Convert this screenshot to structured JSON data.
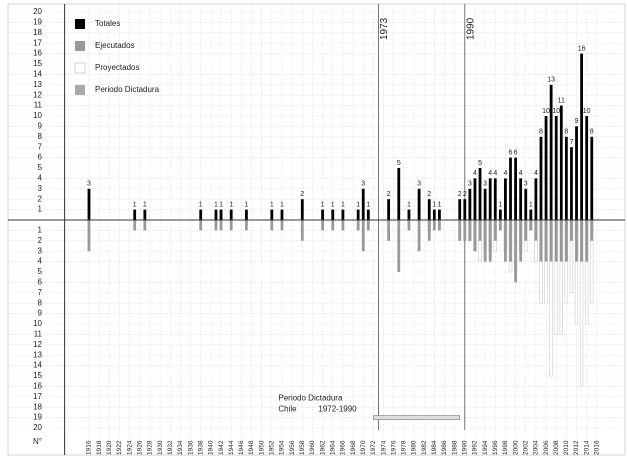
{
  "chart_data": {
    "type": "bar",
    "ylabel": "N°",
    "x": [
      1916,
      1925,
      1927,
      1938,
      1941,
      1942,
      1944,
      1947,
      1952,
      1954,
      1958,
      1962,
      1964,
      1966,
      1969,
      1970,
      1971,
      1975,
      1977,
      1979,
      1981,
      1983,
      1984,
      1985,
      1989,
      1990,
      1991,
      1992,
      1993,
      1994,
      1995,
      1996,
      1997,
      1998,
      1999,
      2000,
      2001,
      2002,
      2003,
      2004,
      2005,
      2006,
      2007,
      2008,
      2009,
      2010,
      2011,
      2012,
      2013,
      2014,
      2015
    ],
    "series": [
      {
        "name": "Totales",
        "color": "#000000",
        "values": [
          3,
          1,
          1,
          1,
          1,
          1,
          1,
          1,
          1,
          1,
          2,
          1,
          1,
          1,
          1,
          3,
          1,
          2,
          5,
          1,
          3,
          2,
          1,
          1,
          2,
          2,
          3,
          4,
          5,
          3,
          4,
          4,
          1,
          4,
          6,
          6,
          4,
          3,
          1,
          4,
          8,
          10,
          13,
          10,
          11,
          8,
          7,
          9,
          16,
          10,
          8
        ]
      },
      {
        "name": "Ejecutados",
        "color": "#999999",
        "values": [
          3,
          1,
          1,
          1,
          1,
          1,
          1,
          1,
          1,
          1,
          2,
          1,
          1,
          1,
          1,
          3,
          1,
          2,
          5,
          1,
          3,
          2,
          1,
          1,
          2,
          2,
          2,
          3,
          2,
          4,
          4,
          2,
          1,
          4,
          4,
          6,
          4,
          2,
          1,
          2,
          4,
          4,
          4,
          4,
          4,
          4,
          2,
          4,
          4,
          4,
          2
        ]
      },
      {
        "name": "Proyectados",
        "color": "#cccccc",
        "values": [
          0,
          0,
          0,
          0,
          0,
          0,
          0,
          0,
          0,
          0,
          0,
          0,
          0,
          0,
          0,
          0,
          0,
          0,
          0,
          0,
          0,
          1,
          0,
          0,
          0,
          0,
          2,
          3,
          4,
          3,
          3,
          3,
          0,
          3,
          5,
          5,
          3,
          3,
          1,
          4,
          8,
          8,
          15,
          11,
          11,
          8,
          7,
          10,
          16,
          10,
          8
        ]
      }
    ],
    "legend_extra": {
      "name": "Periodo Dictadura",
      "color": "#aaaaaa"
    },
    "markers": [
      {
        "x": 1973,
        "label": "1973"
      },
      {
        "x": 1990,
        "label": "1990"
      }
    ],
    "dictadura": {
      "label": "Periodo Dictadura",
      "sublabel": "Chile",
      "range_label": "1972-1990",
      "start": 1972,
      "end": 1989,
      "y": -19
    },
    "xlim": [
      1911,
      2018
    ],
    "xticks": [
      1916,
      1918,
      1920,
      1922,
      1924,
      1926,
      1928,
      1930,
      1932,
      1934,
      1936,
      1938,
      1940,
      1942,
      1944,
      1946,
      1948,
      1950,
      1952,
      1954,
      1956,
      1958,
      1960,
      1962,
      1964,
      1966,
      1968,
      1970,
      1972,
      1974,
      1976,
      1978,
      1980,
      1982,
      1984,
      1986,
      1988,
      1990,
      1992,
      1994,
      1996,
      1998,
      2000,
      2002,
      2004,
      2006,
      2008,
      2010,
      2012,
      2014,
      2016
    ],
    "ylim": [
      -20,
      20
    ],
    "yticks": [
      20,
      19,
      18,
      17,
      16,
      15,
      14,
      13,
      12,
      11,
      10,
      9,
      8,
      7,
      6,
      5,
      4,
      3,
      2,
      1,
      {
        "value": -1,
        "label": "1"
      },
      {
        "value": -2,
        "label": "2"
      },
      {
        "value": -3,
        "label": "3"
      },
      {
        "value": -4,
        "label": "4"
      },
      {
        "value": -5,
        "label": "5"
      },
      {
        "value": -6,
        "label": "6"
      },
      {
        "value": -7,
        "label": "7"
      },
      {
        "value": -8,
        "label": "8"
      },
      {
        "value": -9,
        "label": "9"
      },
      {
        "value": -10,
        "label": "10"
      },
      {
        "value": -11,
        "label": "11"
      },
      {
        "value": -12,
        "label": "12"
      },
      {
        "value": -13,
        "label": "13"
      },
      {
        "value": -14,
        "label": "14"
      },
      {
        "value": -15,
        "label": "15"
      },
      {
        "value": -16,
        "label": "16"
      },
      {
        "value": -17,
        "label": "17"
      },
      {
        "value": -18,
        "label": "18"
      },
      {
        "value": -19,
        "label": "19"
      },
      {
        "value": -20,
        "label": "20"
      }
    ],
    "grid": true
  }
}
